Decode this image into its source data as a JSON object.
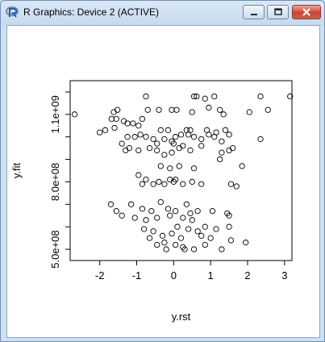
{
  "window": {
    "title": "R Graphics: Device 2 (ACTIVE)",
    "icon": "r-logo-icon",
    "controls": [
      "minimize-icon",
      "maximize-icon",
      "close-icon"
    ]
  },
  "chart_data": {
    "type": "scatter",
    "title": "",
    "xlabel": "y.rst",
    "ylabel": "y.fit",
    "xlim": [
      -2.8,
      3.2
    ],
    "ylim": [
      450000000,
      1250000000
    ],
    "x_ticks": [
      -2,
      -1,
      0,
      1,
      2,
      3
    ],
    "x_tick_labels": [
      "-2",
      "-1",
      "0",
      "1",
      "2",
      "3"
    ],
    "y_ticks": [
      500000000,
      800000000,
      1100000000
    ],
    "y_tick_labels": [
      "5.0e+08",
      "8.0e+08",
      "1.1e+09"
    ],
    "y_minor_ticks": [
      600000000,
      700000000,
      900000000,
      1000000000,
      1200000000
    ],
    "grid": false,
    "marker": "open-circle",
    "points": [
      [
        -2.68,
        1100000000.0
      ],
      [
        -1.68,
        1080000000.0
      ],
      [
        -1.62,
        1110000000.0
      ],
      [
        -1.52,
        1120000000.0
      ],
      [
        -1.55,
        1080000000.0
      ],
      [
        -1.35,
        1070000000.0
      ],
      [
        -1.25,
        1060000000.0
      ],
      [
        -1.1,
        1060000000.0
      ],
      [
        -0.95,
        1050000000.0
      ],
      [
        -0.85,
        1080000000.0
      ],
      [
        -0.7,
        1120000000.0
      ],
      [
        -0.4,
        1120000000.0
      ],
      [
        -0.05,
        1120000000.0
      ],
      [
        0.08,
        1120000000.0
      ],
      [
        0.5,
        1110000000.0
      ],
      [
        0.95,
        1130000000.0
      ],
      [
        1.25,
        1120000000.0
      ],
      [
        1.35,
        1100000000.0
      ],
      [
        2.05,
        1110000000.0
      ],
      [
        2.55,
        1120000000.0
      ],
      [
        -0.75,
        1180000000.0
      ],
      [
        0.55,
        1180000000.0
      ],
      [
        0.62,
        1180000000.0
      ],
      [
        0.85,
        1170000000.0
      ],
      [
        1.1,
        1180000000.0
      ],
      [
        2.35,
        1180000000.0
      ],
      [
        3.15,
        1180000000.0
      ],
      [
        -2.0,
        1020000000.0
      ],
      [
        -1.85,
        1030000000.0
      ],
      [
        -1.6,
        1040000000.0
      ],
      [
        -1.4,
        970000000.0
      ],
      [
        -1.25,
        1000000000.0
      ],
      [
        -1.05,
        1000000000.0
      ],
      [
        -0.9,
        1010000000.0
      ],
      [
        -0.75,
        1000000000.0
      ],
      [
        -0.55,
        990000000.0
      ],
      [
        -0.25,
        990000000.0
      ],
      [
        -0.05,
        980000000.0
      ],
      [
        0.05,
        1000000000.0
      ],
      [
        0.2,
        1010000000.0
      ],
      [
        0.4,
        1010000000.0
      ],
      [
        0.55,
        1000000000.0
      ],
      [
        0.75,
        990000000.0
      ],
      [
        0.95,
        1010000000.0
      ],
      [
        1.1,
        1000000000.0
      ],
      [
        1.3,
        980000000.0
      ],
      [
        1.5,
        1010000000.0
      ],
      [
        2.35,
        990000000.0
      ],
      [
        -0.35,
        1030000000.0
      ],
      [
        -0.15,
        1030000000.0
      ],
      [
        0.35,
        1030000000.0
      ],
      [
        0.45,
        1030000000.0
      ],
      [
        0.9,
        1030000000.0
      ],
      [
        1.15,
        1020000000.0
      ],
      [
        1.4,
        1030000000.0
      ],
      [
        -1.3,
        940000000.0
      ],
      [
        -1.2,
        950000000.0
      ],
      [
        -0.95,
        940000000.0
      ],
      [
        -0.65,
        950000000.0
      ],
      [
        -0.45,
        940000000.0
      ],
      [
        -0.25,
        920000000.0
      ],
      [
        -0.05,
        930000000.0
      ],
      [
        0.15,
        950000000.0
      ],
      [
        0.45,
        940000000.0
      ],
      [
        0.75,
        960000000.0
      ],
      [
        1.3,
        930000000.0
      ],
      [
        1.5,
        940000000.0
      ],
      [
        1.6,
        950000000.0
      ],
      [
        -0.45,
        970000000.0
      ],
      [
        0.0,
        970000000.0
      ],
      [
        0.25,
        960000000.0
      ],
      [
        -0.35,
        870000000.0
      ],
      [
        -0.1,
        860000000.0
      ],
      [
        0.15,
        870000000.0
      ],
      [
        0.55,
        860000000.0
      ],
      [
        1.25,
        900000000.0
      ],
      [
        1.85,
        870000000.0
      ],
      [
        -0.95,
        830000000.0
      ],
      [
        -0.75,
        810000000.0
      ],
      [
        -0.4,
        800000000.0
      ],
      [
        -0.1,
        810000000.0
      ],
      [
        0.05,
        810000000.0
      ],
      [
        0.25,
        790000000.0
      ],
      [
        0.5,
        800000000.0
      ],
      [
        0.75,
        790000000.0
      ],
      [
        1.55,
        790000000.0
      ],
      [
        1.7,
        780000000.0
      ],
      [
        -0.85,
        790000000.0
      ],
      [
        -0.55,
        790000000.0
      ],
      [
        -0.25,
        790000000.0
      ],
      [
        0.0,
        800000000.0
      ],
      [
        -1.7,
        700000000.0
      ],
      [
        -1.55,
        670000000.0
      ],
      [
        -1.15,
        700000000.0
      ],
      [
        -0.85,
        680000000.0
      ],
      [
        -0.6,
        670000000.0
      ],
      [
        -0.35,
        710000000.0
      ],
      [
        -0.15,
        680000000.0
      ],
      [
        0.05,
        670000000.0
      ],
      [
        0.35,
        700000000.0
      ],
      [
        0.45,
        660000000.0
      ],
      [
        0.65,
        670000000.0
      ],
      [
        1.05,
        670000000.0
      ],
      [
        1.5,
        650000000.0
      ],
      [
        -1.4,
        650000000.0
      ],
      [
        -1.05,
        640000000.0
      ],
      [
        -0.75,
        630000000.0
      ],
      [
        -0.45,
        640000000.0
      ],
      [
        -0.1,
        650000000.0
      ],
      [
        0.25,
        640000000.0
      ],
      [
        0.5,
        630000000.0
      ],
      [
        1.45,
        660000000.0
      ],
      [
        -0.8,
        590000000.0
      ],
      [
        -0.55,
        580000000.0
      ],
      [
        -0.3,
        560000000.0
      ],
      [
        -0.05,
        570000000.0
      ],
      [
        0.2,
        550000000.0
      ],
      [
        0.4,
        590000000.0
      ],
      [
        0.65,
        580000000.0
      ],
      [
        0.85,
        600000000.0
      ],
      [
        1.15,
        590000000.0
      ],
      [
        1.5,
        600000000.0
      ],
      [
        -0.65,
        550000000.0
      ],
      [
        -0.45,
        520000000.0
      ],
      [
        -0.25,
        530000000.0
      ],
      [
        0.05,
        520000000.0
      ],
      [
        0.25,
        510000000.0
      ],
      [
        0.55,
        500000000.0
      ],
      [
        0.85,
        520000000.0
      ],
      [
        1.0,
        550000000.0
      ],
      [
        1.3,
        500000000.0
      ],
      [
        1.55,
        540000000.0
      ],
      [
        1.95,
        530000000.0
      ],
      [
        0.3,
        500000000.0
      ],
      [
        -0.2,
        500000000.0
      ],
      [
        0.75,
        560000000.0
      ],
      [
        0.1,
        600000000.0
      ]
    ]
  }
}
